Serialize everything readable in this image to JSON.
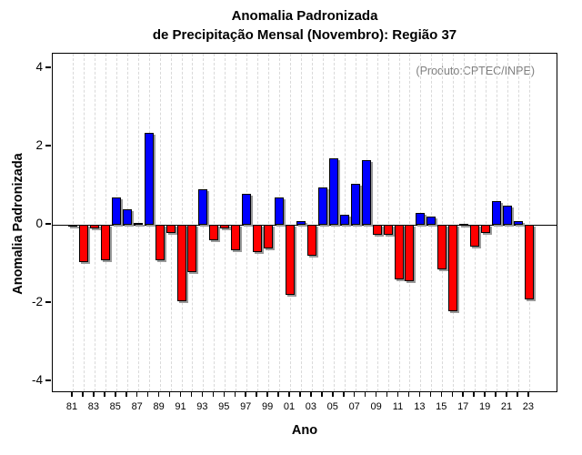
{
  "chart_data": {
    "type": "bar",
    "title_line1": "Anomalia Padronizada",
    "title_line2": "de Precipitação Mensal (Novembro): Região 37",
    "annotation": "(Produto:CPTEC/INPE)",
    "xlabel": "Ano",
    "ylabel": "Anomalia Padronizada",
    "ylim": [
      -4.35,
      4.35
    ],
    "yticks": [
      4,
      2,
      0,
      -2,
      -4
    ],
    "grid": "vertical-dashed-per-year",
    "legend": "none",
    "categories": [
      "81",
      "82",
      "83",
      "84",
      "85",
      "86",
      "87",
      "88",
      "89",
      "90",
      "91",
      "92",
      "93",
      "94",
      "95",
      "96",
      "97",
      "98",
      "99",
      "00",
      "01",
      "02",
      "03",
      "04",
      "05",
      "06",
      "07",
      "08",
      "09",
      "10",
      "11",
      "12",
      "13",
      "14",
      "15",
      "16",
      "17",
      "18",
      "19",
      "20",
      "21",
      "22",
      "23"
    ],
    "x_tick_labels": [
      "81",
      "83",
      "85",
      "87",
      "89",
      "91",
      "93",
      "95",
      "97",
      "99",
      "01",
      "03",
      "05",
      "07",
      "09",
      "11",
      "13",
      "15",
      "17",
      "19",
      "21",
      "23"
    ],
    "values": [
      -0.05,
      -0.95,
      -0.1,
      -0.9,
      0.7,
      0.4,
      0.05,
      2.35,
      -0.9,
      -0.2,
      -1.95,
      -1.2,
      0.9,
      -0.4,
      -0.1,
      -0.65,
      0.8,
      -0.7,
      -0.6,
      0.7,
      -1.8,
      0.1,
      -0.8,
      0.95,
      1.7,
      0.25,
      1.05,
      1.65,
      -0.25,
      -0.25,
      -1.4,
      -1.45,
      0.3,
      0.2,
      -1.15,
      -2.2,
      0.03,
      -0.55,
      -0.2,
      0.6,
      0.5,
      0.1,
      -1.9
    ],
    "colors": {
      "positive_bar": "#0000ff",
      "negative_bar": "#ff0000",
      "bar_outline": "#000000",
      "bar_shadow": "#9a9a9a",
      "gridline": "#d9d9d9",
      "annotation_text": "#808080",
      "axis": "#000000"
    }
  }
}
